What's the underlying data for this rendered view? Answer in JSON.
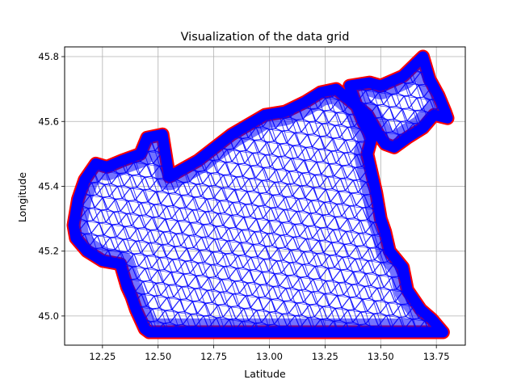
{
  "chart_data": {
    "type": "scatter",
    "title": "Visualization of the data grid",
    "xlabel": "Latitude",
    "ylabel": "Longitude",
    "xlim": [
      12.08,
      13.88
    ],
    "ylim": [
      44.91,
      45.83
    ],
    "grid": true,
    "xticks": [
      "12.25",
      "12.50",
      "12.75",
      "13.00",
      "13.25",
      "13.50",
      "13.75"
    ],
    "yticks": [
      "45.0",
      "45.2",
      "45.4",
      "45.6",
      "45.8"
    ],
    "colors": {
      "mesh": "#0000ff",
      "boundary": "#ff0000",
      "grid": "#b0b0b0"
    },
    "series": [
      {
        "marker": "boundary",
        "x": [
          12.52,
          12.62,
          12.76,
          13.1,
          13.4,
          13.6,
          13.7,
          13.78,
          13.73,
          13.68,
          13.62,
          13.6,
          13.54,
          13.52,
          13.5,
          13.48,
          13.46,
          13.44,
          13.46,
          13.42,
          13.39,
          13.36,
          13.45,
          13.5,
          13.6,
          13.69,
          13.72,
          13.76,
          13.79,
          13.8,
          13.74,
          13.69,
          13.62,
          13.56,
          13.52,
          13.49,
          13.44,
          13.37,
          13.3,
          13.23,
          13.16,
          13.07,
          12.98,
          12.83,
          12.68,
          12.55,
          12.52,
          12.45,
          12.42,
          12.34,
          12.27,
          12.22,
          12.17,
          12.14,
          12.12,
          12.13,
          12.18,
          12.25,
          12.33,
          12.36,
          12.38,
          12.4,
          12.42,
          12.44,
          12.46,
          12.52
        ],
        "y": [
          44.95,
          44.95,
          44.95,
          44.95,
          44.95,
          44.95,
          44.95,
          44.95,
          44.99,
          45.02,
          45.08,
          45.15,
          45.2,
          45.26,
          45.3,
          45.38,
          45.44,
          45.5,
          45.55,
          45.6,
          45.65,
          45.71,
          45.72,
          45.71,
          45.74,
          45.8,
          45.73,
          45.68,
          45.63,
          45.61,
          45.62,
          45.58,
          45.55,
          45.52,
          45.53,
          45.56,
          45.62,
          45.66,
          45.7,
          45.69,
          45.66,
          45.63,
          45.62,
          45.56,
          45.48,
          45.43,
          45.56,
          45.55,
          45.5,
          45.48,
          45.46,
          45.47,
          45.42,
          45.36,
          45.28,
          45.24,
          45.2,
          45.17,
          45.16,
          45.09,
          45.06,
          45.02,
          44.99,
          44.96,
          44.95,
          44.95
        ]
      }
    ]
  }
}
